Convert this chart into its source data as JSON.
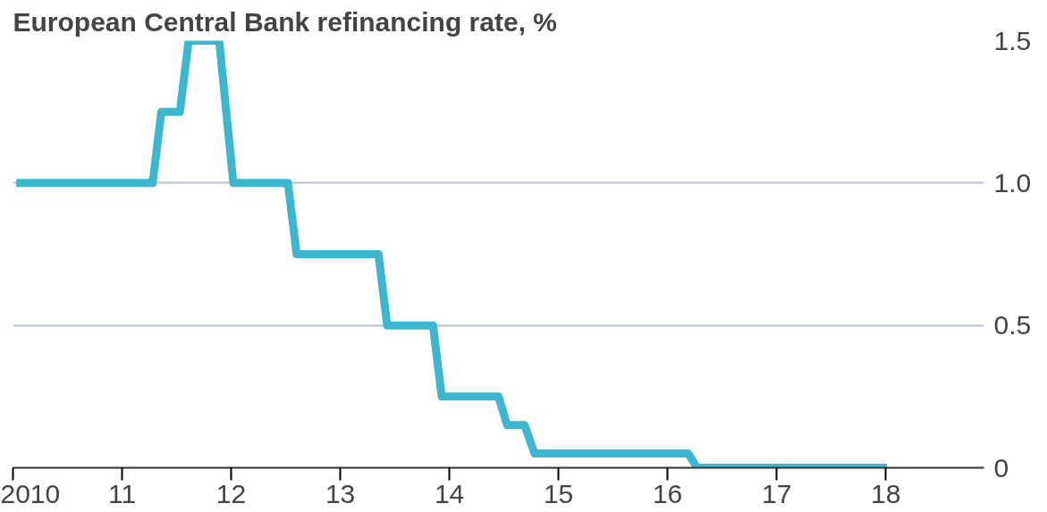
{
  "chart_data": {
    "type": "line",
    "title": "European Central Bank refinancing rate, %",
    "x": [
      2010.03,
      2011.28,
      2011.36,
      2011.53,
      2011.61,
      2011.89,
      2012.02,
      2012.52,
      2012.6,
      2013.35,
      2013.43,
      2013.85,
      2013.93,
      2014.45,
      2014.53,
      2014.69,
      2014.78,
      2016.19,
      2016.27,
      2018.01
    ],
    "series": [
      {
        "color": "#3cb7cf",
        "values": [
          1.0,
          1.0,
          1.25,
          1.25,
          1.5,
          1.5,
          1.0,
          1.0,
          0.75,
          0.75,
          0.5,
          0.5,
          0.25,
          0.25,
          0.15,
          0.15,
          0.05,
          0.05,
          0.0,
          0.0
        ]
      }
    ],
    "xlim": [
      2010,
      2018.9
    ],
    "ylim": [
      0,
      1.5
    ],
    "xticks": [
      {
        "value": 2010,
        "label": "2010"
      },
      {
        "value": 2011,
        "label": "11"
      },
      {
        "value": 2012,
        "label": "12"
      },
      {
        "value": 2013,
        "label": "13"
      },
      {
        "value": 2014,
        "label": "14"
      },
      {
        "value": 2015,
        "label": "15"
      },
      {
        "value": 2016,
        "label": "16"
      },
      {
        "value": 2017,
        "label": "17"
      },
      {
        "value": 2018,
        "label": "18"
      }
    ],
    "yticks": [
      0,
      {
        "value": 0.5,
        "label": "0.5"
      },
      {
        "value": 1.0,
        "label": "1.0"
      },
      {
        "value": 1.5,
        "label": "1.5"
      }
    ],
    "grid": "y",
    "line_style": "solid",
    "marker": "none"
  }
}
